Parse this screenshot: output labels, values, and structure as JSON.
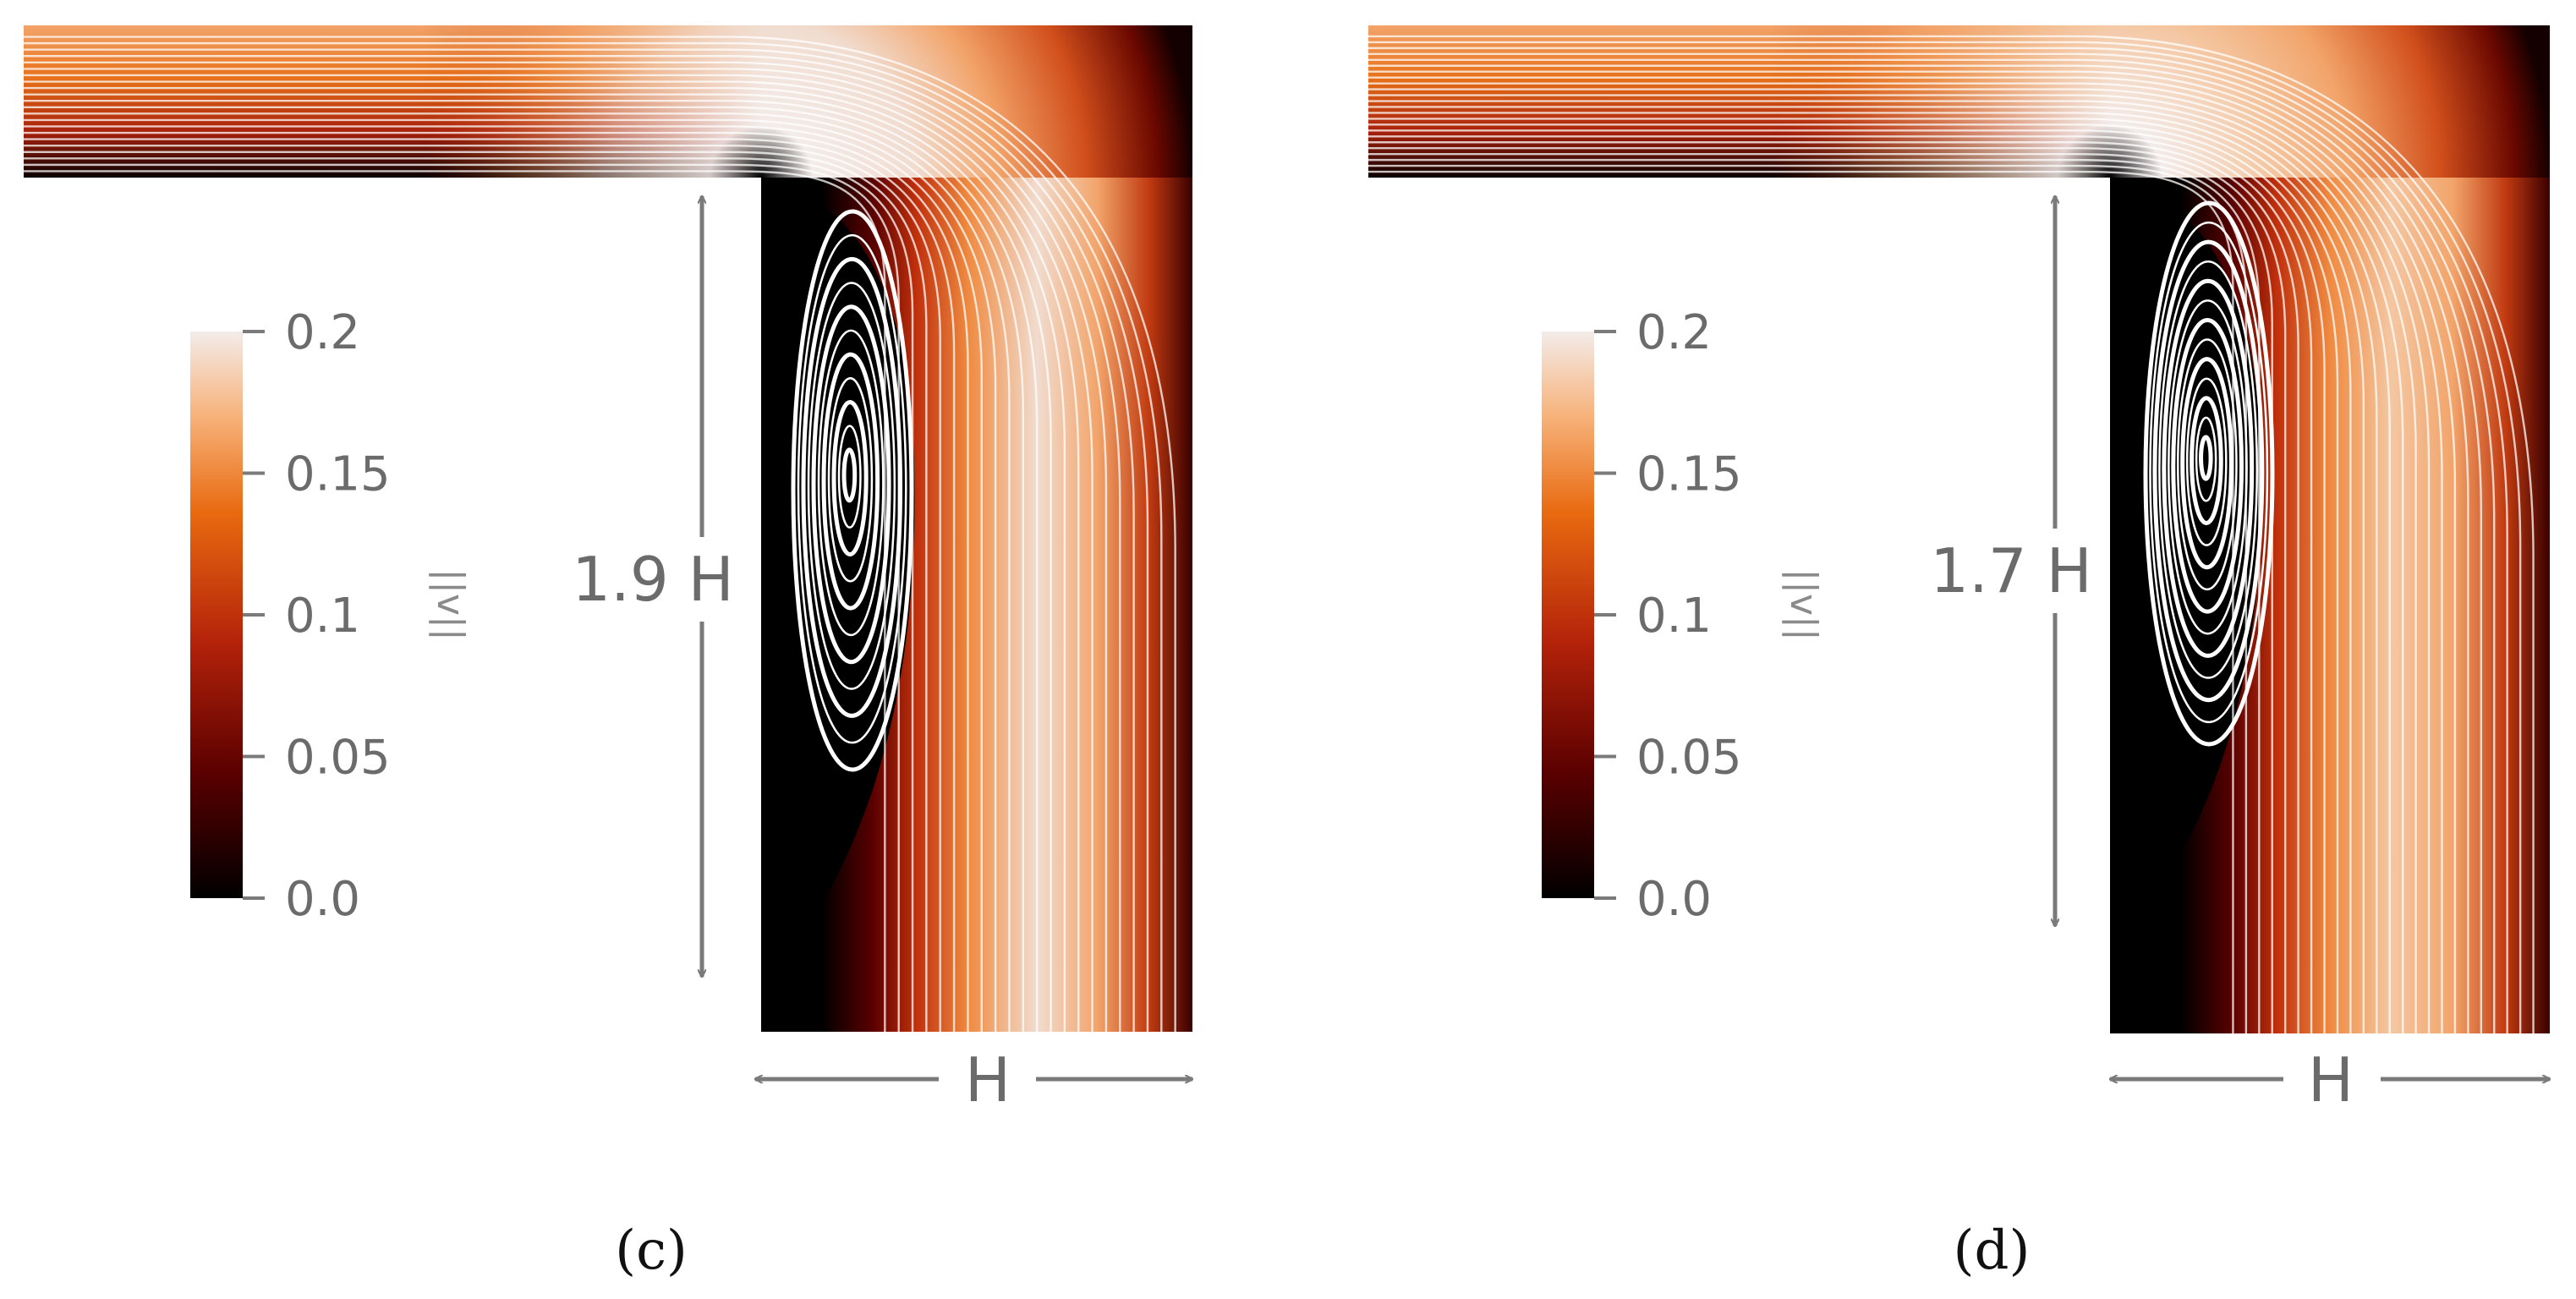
{
  "colormap": {
    "stops": [
      "#000000",
      "#5a0000",
      "#b3220a",
      "#e86a10",
      "#f7b27a",
      "#f3ecea"
    ],
    "ticks": [
      "0.0",
      "0.05",
      "0.1",
      "0.15",
      "0.2"
    ],
    "variable_label": "||v||"
  },
  "panels": [
    {
      "caption": "(c)",
      "height_label": "1.9 H",
      "width_label": "H"
    },
    {
      "caption": "(d)",
      "height_label": "1.7 H",
      "width_label": "H"
    }
  ]
}
